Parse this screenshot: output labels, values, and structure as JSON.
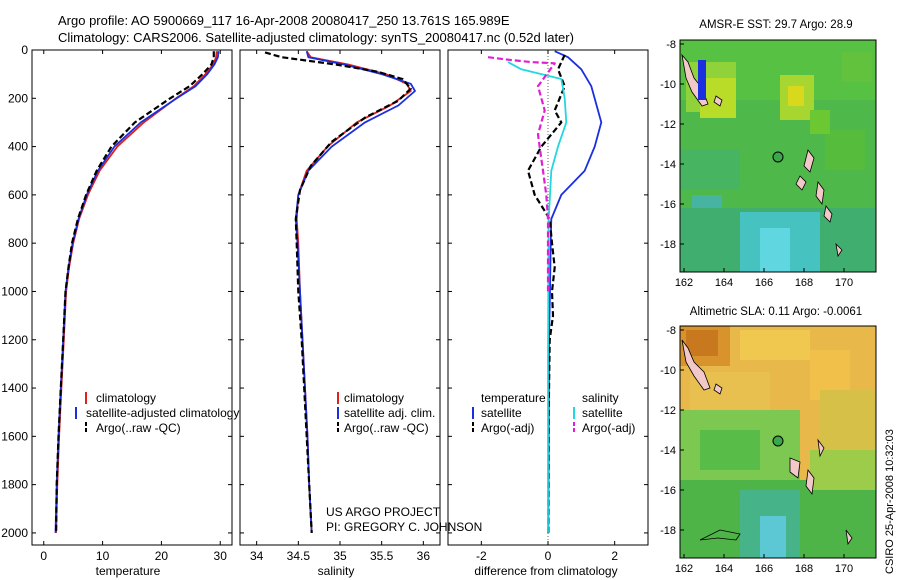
{
  "header": {
    "line1": "Argo profile: AO 5900669_117 16-Apr-2008 20080417_250 13.761S 165.989E",
    "line2": "Climatology: CARS2006. Satellite-adjusted climatology: synTS_20080417.nc (0.52d later)"
  },
  "side_stamp": "CSIRO 25-Apr-2008 10:32:03",
  "project": {
    "line1": "US ARGO PROJECT",
    "line2": "PI: GREGORY C. JOHNSON"
  },
  "colors": {
    "climatology": "#e0201a",
    "satellite": "#1a2fe0",
    "argo": "#000000",
    "sat_salinity": "#22d8e0",
    "argo_salinity": "#e020d0"
  },
  "chart_data": [
    {
      "type": "line",
      "name": "temperature-profile",
      "xlabel": "temperature",
      "ylabel": "",
      "xlim": [
        -2,
        32
      ],
      "ylim": [
        2050,
        0
      ],
      "xticks": [
        0,
        10,
        20,
        30
      ],
      "yticks": [
        0,
        200,
        400,
        600,
        800,
        1000,
        1200,
        1400,
        1600,
        1800,
        2000
      ],
      "legend": [
        "climatology",
        "satellite-adjusted climatology",
        "Argo(..raw -QC)"
      ],
      "series": [
        {
          "name": "climatology",
          "color": "red",
          "dash": false,
          "points": [
            [
              29.4,
              5
            ],
            [
              29.3,
              30
            ],
            [
              28.8,
              60
            ],
            [
              27.5,
              100
            ],
            [
              25.5,
              150
            ],
            [
              22.5,
              200
            ],
            [
              17,
              300
            ],
            [
              12.5,
              400
            ],
            [
              9.5,
              500
            ],
            [
              7.5,
              600
            ],
            [
              6,
              700
            ],
            [
              5,
              800
            ],
            [
              4.3,
              900
            ],
            [
              3.8,
              1000
            ],
            [
              3.4,
              1200
            ],
            [
              3,
              1400
            ],
            [
              2.6,
              1600
            ],
            [
              2.3,
              1800
            ],
            [
              2.1,
              2000
            ]
          ]
        },
        {
          "name": "satellite-adjusted climatology",
          "color": "blue",
          "dash": false,
          "points": [
            [
              29.7,
              5
            ],
            [
              29.6,
              30
            ],
            [
              29,
              60
            ],
            [
              27.8,
              100
            ],
            [
              25.8,
              150
            ],
            [
              22.6,
              200
            ],
            [
              16.5,
              300
            ],
            [
              12,
              400
            ],
            [
              9.2,
              500
            ],
            [
              7.3,
              600
            ],
            [
              5.9,
              700
            ],
            [
              4.9,
              800
            ],
            [
              4.2,
              900
            ],
            [
              3.7,
              1000
            ],
            [
              3.3,
              1200
            ],
            [
              2.9,
              1400
            ],
            [
              2.5,
              1600
            ],
            [
              2.2,
              1800
            ],
            [
              2,
              2000
            ]
          ]
        },
        {
          "name": "Argo(..raw -QC)",
          "color": "black",
          "dash": true,
          "points": [
            [
              28.9,
              5
            ],
            [
              28.9,
              30
            ],
            [
              28.5,
              60
            ],
            [
              27,
              100
            ],
            [
              24.8,
              150
            ],
            [
              21.5,
              200
            ],
            [
              15.5,
              300
            ],
            [
              11.5,
              400
            ],
            [
              9,
              500
            ],
            [
              7.2,
              600
            ],
            [
              5.8,
              700
            ],
            [
              4.8,
              800
            ],
            [
              4.2,
              900
            ],
            [
              3.7,
              1000
            ],
            [
              3.3,
              1200
            ],
            [
              2.9,
              1400
            ],
            [
              2.5,
              1600
            ],
            [
              2.2,
              1800
            ],
            [
              2.1,
              2000
            ]
          ]
        }
      ]
    },
    {
      "type": "line",
      "name": "salinity-profile",
      "xlabel": "salinity",
      "xlim": [
        33.8,
        36.2
      ],
      "ylim": [
        2050,
        0
      ],
      "xticks": [
        34,
        34.5,
        35,
        35.5,
        36
      ],
      "legend": [
        "climatology",
        "satellite adj. clim.",
        "Argo(..raw -QC)"
      ],
      "series": [
        {
          "name": "climatology",
          "color": "red",
          "dash": false,
          "points": [
            [
              34.6,
              5
            ],
            [
              34.65,
              30
            ],
            [
              35.1,
              60
            ],
            [
              35.55,
              100
            ],
            [
              35.8,
              140
            ],
            [
              35.85,
              170
            ],
            [
              35.6,
              230
            ],
            [
              35.2,
              300
            ],
            [
              34.85,
              400
            ],
            [
              34.6,
              500
            ],
            [
              34.5,
              600
            ],
            [
              34.48,
              700
            ],
            [
              34.5,
              800
            ],
            [
              34.52,
              1000
            ],
            [
              34.55,
              1200
            ],
            [
              34.58,
              1400
            ],
            [
              34.61,
              1600
            ],
            [
              34.63,
              1800
            ],
            [
              34.66,
              2000
            ]
          ]
        },
        {
          "name": "satellite adj. clim.",
          "color": "blue",
          "dash": false,
          "points": [
            [
              34.6,
              5
            ],
            [
              34.62,
              30
            ],
            [
              35.05,
              60
            ],
            [
              35.5,
              100
            ],
            [
              35.85,
              140
            ],
            [
              35.9,
              170
            ],
            [
              35.7,
              230
            ],
            [
              35.3,
              300
            ],
            [
              34.9,
              400
            ],
            [
              34.62,
              500
            ],
            [
              34.5,
              600
            ],
            [
              34.47,
              700
            ],
            [
              34.49,
              800
            ],
            [
              34.52,
              1000
            ],
            [
              34.55,
              1200
            ],
            [
              34.58,
              1400
            ],
            [
              34.61,
              1600
            ],
            [
              34.63,
              1800
            ],
            [
              34.66,
              2000
            ]
          ]
        },
        {
          "name": "Argo(..raw -QC)",
          "color": "black",
          "dash": true,
          "points": [
            [
              34.1,
              10
            ],
            [
              34.3,
              30
            ],
            [
              34.95,
              60
            ],
            [
              35.45,
              90
            ],
            [
              35.75,
              120
            ],
            [
              35.85,
              160
            ],
            [
              35.7,
              210
            ],
            [
              35.3,
              280
            ],
            [
              34.9,
              380
            ],
            [
              34.65,
              480
            ],
            [
              34.52,
              580
            ],
            [
              34.47,
              700
            ],
            [
              34.48,
              800
            ],
            [
              34.5,
              1000
            ],
            [
              34.54,
              1200
            ],
            [
              34.57,
              1400
            ],
            [
              34.6,
              1600
            ],
            [
              34.63,
              1800
            ],
            [
              34.66,
              2000
            ]
          ]
        }
      ]
    },
    {
      "type": "line",
      "name": "difference-profile",
      "xlabel": "difference from climatology",
      "xlim": [
        -3,
        3
      ],
      "ylim": [
        2050,
        0
      ],
      "xticks": [
        -2,
        0,
        2
      ],
      "legend": [
        "temperature",
        "satellite",
        "Argo(-adj)",
        "salinity",
        "satellite",
        "Argo(-adj)"
      ],
      "series": [
        {
          "name": "temperature satellite",
          "color": "blue",
          "dash": false,
          "points": [
            [
              0.2,
              5
            ],
            [
              0.6,
              30
            ],
            [
              1,
              80
            ],
            [
              1.3,
              150
            ],
            [
              1.6,
              300
            ],
            [
              1.4,
              400
            ],
            [
              1.1,
              500
            ],
            [
              0.4,
              600
            ],
            [
              0.1,
              700
            ],
            [
              0.08,
              800
            ],
            [
              0.06,
              1000
            ],
            [
              0.03,
              1200
            ],
            [
              0.02,
              1500
            ],
            [
              0.01,
              2000
            ]
          ]
        },
        {
          "name": "temperature Argo(-adj)",
          "color": "black",
          "dash": true,
          "points": [
            [
              0.5,
              20
            ],
            [
              0.3,
              80
            ],
            [
              0.5,
              150
            ],
            [
              0.2,
              250
            ],
            [
              0.4,
              300
            ],
            [
              -0.2,
              400
            ],
            [
              -0.6,
              500
            ],
            [
              -0.4,
              600
            ],
            [
              0.05,
              700
            ],
            [
              0.12,
              800
            ],
            [
              0.2,
              900
            ],
            [
              0.12,
              1000
            ],
            [
              0.15,
              1100
            ],
            [
              0.05,
              1200
            ],
            [
              0.02,
              1500
            ],
            [
              0.01,
              2000
            ]
          ]
        },
        {
          "name": "salinity satellite",
          "color": "cyan",
          "dash": false,
          "points": [
            [
              -1.2,
              50
            ],
            [
              -0.8,
              80
            ],
            [
              0.4,
              120
            ],
            [
              0.5,
              200
            ],
            [
              0.55,
              300
            ],
            [
              0.3,
              400
            ],
            [
              0.1,
              500
            ],
            [
              0.02,
              700
            ],
            [
              0.01,
              1000
            ],
            [
              0,
              1300
            ],
            [
              0,
              2000
            ]
          ]
        },
        {
          "name": "salinity Argo(-adj)",
          "color": "magenta",
          "dash": true,
          "points": [
            [
              -1.8,
              30
            ],
            [
              -1.2,
              40
            ],
            [
              -0.5,
              50
            ],
            [
              0.2,
              55
            ],
            [
              -0.3,
              150
            ],
            [
              -0.1,
              250
            ],
            [
              -0.3,
              350
            ],
            [
              -0.2,
              450
            ],
            [
              -0.15,
              500
            ],
            [
              -0.05,
              600
            ],
            [
              0,
              700
            ],
            [
              0,
              1000
            ]
          ]
        }
      ]
    }
  ],
  "maps": [
    {
      "title": "AMSR-E SST: 29.7 Argo: 28.9",
      "xticks": [
        "162",
        "164",
        "166",
        "168",
        "170"
      ],
      "yticks": [
        "-8",
        "-10",
        "-12",
        "-14",
        "-16",
        "-18"
      ]
    },
    {
      "title": "Altimetric SLA: 0.11 Argo: -0.0061",
      "xticks": [
        "162",
        "164",
        "166",
        "168",
        "170"
      ],
      "yticks": [
        "-8",
        "-10",
        "-12",
        "-14",
        "-16",
        "-18"
      ]
    }
  ]
}
